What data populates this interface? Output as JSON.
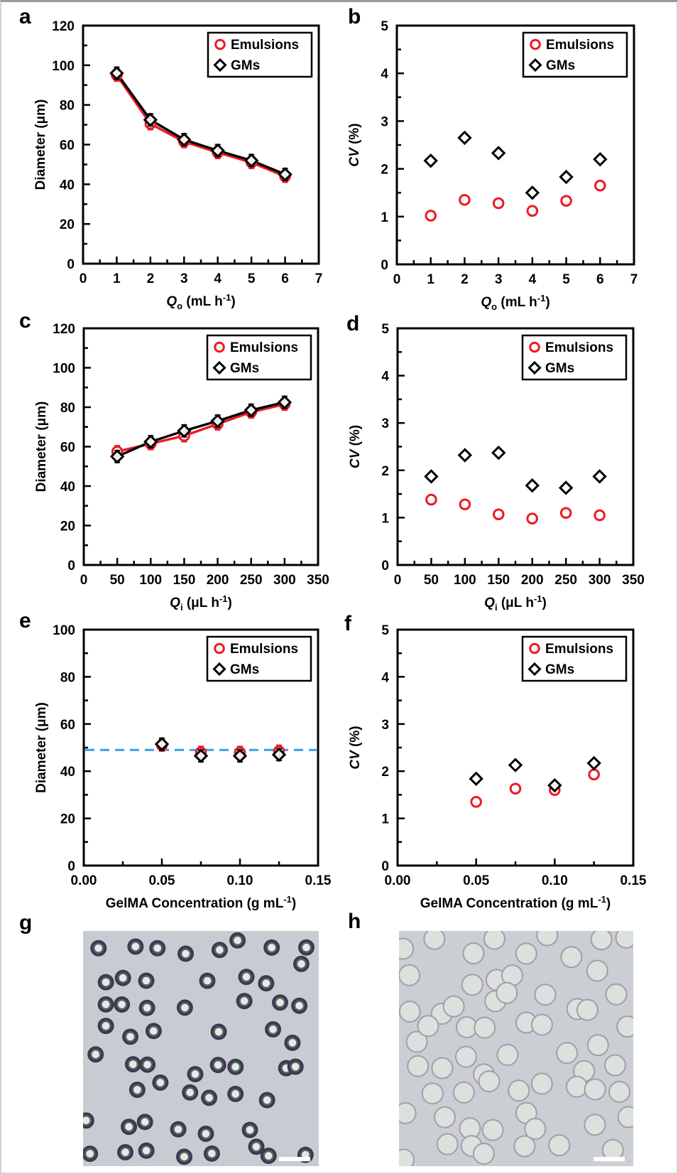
{
  "figure": {
    "background": "#ffffff",
    "frame_color": "#d2d2d2"
  },
  "colors": {
    "emulsions": "#ec1b24",
    "gms": "#000000",
    "axis": "#000000",
    "reference_dash": "#39a5ef",
    "micrograph_g_bg": "#c7ccd3",
    "micrograph_h_bg": "#cbced2",
    "scalebar": "#ffffff"
  },
  "legend": {
    "emulsions_label": "Emulsions",
    "gms_label": "GMs"
  },
  "chart_data": [
    {
      "id": "a",
      "panel_letter": "a",
      "type": "line",
      "x": [
        1,
        2,
        3,
        4,
        5,
        6
      ],
      "series": [
        {
          "name": "Emulsions",
          "marker": "circle",
          "color": "#ec1b24",
          "line": true,
          "values": [
            95,
            70.5,
            61.5,
            56,
            51,
            44
          ]
        },
        {
          "name": "GMs",
          "marker": "diamond",
          "color": "#000000",
          "line": true,
          "values": [
            96,
            72.5,
            62.5,
            57,
            52,
            45
          ]
        }
      ],
      "error_y": 3,
      "xlim": [
        0,
        7
      ],
      "ylim": [
        0,
        120
      ],
      "xtick_step": 1,
      "ytick_step": 20,
      "xminor_step": 0.5,
      "yminor_step": 10,
      "xtick_decimals": 0,
      "ytick_decimals": 0,
      "xticks": [
        "0",
        "1",
        "2",
        "3",
        "4",
        "5",
        "6",
        "7"
      ],
      "yticks": [
        "0",
        "20",
        "40",
        "60",
        "80",
        "100",
        "120"
      ],
      "xlabel": [
        {
          "t": "Q",
          "i": true
        },
        {
          "t": "o",
          "sub": true
        },
        {
          "t": " (mL h"
        },
        {
          "t": "-1",
          "sup": true
        },
        {
          "t": ")"
        }
      ],
      "ylabel": [
        {
          "t": "Diameter (μm)"
        }
      ],
      "legend": true,
      "ref_line_y": null
    },
    {
      "id": "b",
      "panel_letter": "b",
      "type": "scatter",
      "x": [
        1,
        2,
        3,
        4,
        5,
        6
      ],
      "series": [
        {
          "name": "Emulsions",
          "marker": "circle",
          "color": "#ec1b24",
          "line": false,
          "values": [
            1.02,
            1.35,
            1.28,
            1.12,
            1.33,
            1.65
          ]
        },
        {
          "name": "GMs",
          "marker": "diamond",
          "color": "#000000",
          "line": false,
          "values": [
            2.17,
            2.65,
            2.33,
            1.5,
            1.83,
            2.2
          ]
        }
      ],
      "error_y": 0,
      "xlim": [
        0,
        7
      ],
      "ylim": [
        0,
        5
      ],
      "xtick_step": 1,
      "ytick_step": 1,
      "xminor_step": 0.5,
      "yminor_step": 0.5,
      "xtick_decimals": 0,
      "ytick_decimals": 0,
      "xticks": [
        "0",
        "1",
        "2",
        "3",
        "4",
        "5",
        "6",
        "7"
      ],
      "yticks": [
        "0",
        "1",
        "2",
        "3",
        "4",
        "5"
      ],
      "xlabel": [
        {
          "t": "Q",
          "i": true
        },
        {
          "t": "o",
          "sub": true
        },
        {
          "t": " (mL h"
        },
        {
          "t": "-1",
          "sup": true
        },
        {
          "t": ")"
        }
      ],
      "ylabel": [
        {
          "t": "CV",
          "i": true
        },
        {
          "t": " (%)"
        }
      ],
      "legend": true,
      "ref_line_y": null
    },
    {
      "id": "c",
      "panel_letter": "c",
      "type": "line",
      "x": [
        50,
        100,
        150,
        200,
        250,
        300
      ],
      "series": [
        {
          "name": "Emulsions",
          "marker": "circle",
          "color": "#ec1b24",
          "line": true,
          "values": [
            57.5,
            61.5,
            65.5,
            71.5,
            77.5,
            81.5
          ]
        },
        {
          "name": "GMs",
          "marker": "diamond",
          "color": "#000000",
          "line": true,
          "values": [
            55,
            62.5,
            68,
            73,
            78.5,
            82.5
          ]
        }
      ],
      "error_y": 3,
      "xlim": [
        0,
        350
      ],
      "ylim": [
        0,
        120
      ],
      "xtick_step": 50,
      "ytick_step": 20,
      "xminor_step": 25,
      "yminor_step": 10,
      "xtick_decimals": 0,
      "ytick_decimals": 0,
      "xticks": [
        "0",
        "50",
        "100",
        "150",
        "200",
        "250",
        "300",
        "350"
      ],
      "yticks": [
        "0",
        "20",
        "40",
        "60",
        "80",
        "100",
        "120"
      ],
      "xlabel": [
        {
          "t": "Q",
          "i": true
        },
        {
          "t": "i",
          "sub": true
        },
        {
          "t": " (μL h"
        },
        {
          "t": "-1",
          "sup": true
        },
        {
          "t": ")"
        }
      ],
      "ylabel": [
        {
          "t": "Diameter (μm)"
        }
      ],
      "legend": true,
      "ref_line_y": null
    },
    {
      "id": "d",
      "panel_letter": "d",
      "type": "scatter",
      "x": [
        50,
        100,
        150,
        200,
        250,
        300
      ],
      "series": [
        {
          "name": "Emulsions",
          "marker": "circle",
          "color": "#ec1b24",
          "line": false,
          "values": [
            1.38,
            1.28,
            1.07,
            0.98,
            1.1,
            1.05
          ]
        },
        {
          "name": "GMs",
          "marker": "diamond",
          "color": "#000000",
          "line": false,
          "values": [
            1.87,
            2.32,
            2.37,
            1.68,
            1.63,
            1.87
          ]
        }
      ],
      "error_y": 0,
      "xlim": [
        0,
        350
      ],
      "ylim": [
        0,
        5
      ],
      "xtick_step": 50,
      "ytick_step": 1,
      "xminor_step": 25,
      "yminor_step": 0.5,
      "xtick_decimals": 0,
      "ytick_decimals": 0,
      "xticks": [
        "0",
        "50",
        "100",
        "150",
        "200",
        "250",
        "300",
        "350"
      ],
      "yticks": [
        "0",
        "1",
        "2",
        "3",
        "4",
        "5"
      ],
      "xlabel": [
        {
          "t": "Q",
          "i": true
        },
        {
          "t": "i",
          "sub": true
        },
        {
          "t": " (μL h"
        },
        {
          "t": "-1",
          "sup": true
        },
        {
          "t": ")"
        }
      ],
      "ylabel": [
        {
          "t": "CV",
          "i": true
        },
        {
          "t": " (%)"
        }
      ],
      "legend": true,
      "ref_line_y": null
    },
    {
      "id": "e",
      "panel_letter": "e",
      "type": "scatter",
      "x": [
        0.05,
        0.075,
        0.1,
        0.125
      ],
      "series": [
        {
          "name": "Emulsions",
          "marker": "circle",
          "color": "#ec1b24",
          "line": false,
          "values": [
            51,
            48,
            48,
            48.5
          ]
        },
        {
          "name": "GMs",
          "marker": "diamond",
          "color": "#000000",
          "line": false,
          "values": [
            51.5,
            46.5,
            46.5,
            47
          ]
        }
      ],
      "error_y": 2.5,
      "xlim": [
        0,
        0.15
      ],
      "ylim": [
        0,
        100
      ],
      "xtick_step": 0.05,
      "ytick_step": 20,
      "xminor_step": 0.025,
      "yminor_step": 10,
      "xtick_decimals": 2,
      "ytick_decimals": 0,
      "xticks": [
        "0.00",
        "0.05",
        "0.10",
        "0.15"
      ],
      "yticks": [
        "0",
        "20",
        "40",
        "60",
        "80",
        "100"
      ],
      "xlabel": [
        {
          "t": "GelMA Concentration (g mL"
        },
        {
          "t": "-1",
          "sup": true
        },
        {
          "t": ")"
        }
      ],
      "ylabel": [
        {
          "t": "Diameter (μm)"
        }
      ],
      "legend": true,
      "ref_line_y": 49
    },
    {
      "id": "f",
      "panel_letter": "f",
      "type": "scatter",
      "x": [
        0.05,
        0.075,
        0.1,
        0.125
      ],
      "series": [
        {
          "name": "Emulsions",
          "marker": "circle",
          "color": "#ec1b24",
          "line": false,
          "values": [
            1.35,
            1.63,
            1.6,
            1.93
          ]
        },
        {
          "name": "GMs",
          "marker": "diamond",
          "color": "#000000",
          "line": false,
          "values": [
            1.84,
            2.13,
            1.7,
            2.17
          ]
        }
      ],
      "error_y": 0,
      "xlim": [
        0,
        0.15
      ],
      "ylim": [
        0,
        5
      ],
      "xtick_step": 0.05,
      "ytick_step": 1,
      "xminor_step": 0.025,
      "yminor_step": 0.5,
      "xtick_decimals": 2,
      "ytick_decimals": 0,
      "xticks": [
        "0.00",
        "0.05",
        "0.10",
        "0.15"
      ],
      "yticks": [
        "0",
        "1",
        "2",
        "3",
        "4",
        "5"
      ],
      "xlabel": [
        {
          "t": "GelMA Concentration (g mL"
        },
        {
          "t": "-1",
          "sup": true
        },
        {
          "t": ")"
        }
      ],
      "ylabel": [
        {
          "t": "CV",
          "i": true
        },
        {
          "t": " (%)"
        }
      ],
      "legend": true,
      "ref_line_y": null
    }
  ],
  "micrographs": [
    {
      "id": "g",
      "panel_letter": "g",
      "type": "rings",
      "bg": "#c7ccd3",
      "count": 56,
      "cols": 8,
      "rows": 8,
      "radius": 11.5,
      "ring_color": "#3f3850",
      "teal_color": "#44705f",
      "center_color": "#ece5ea",
      "seed": 11,
      "jitter": 0.8,
      "scalebar": {
        "w": 44,
        "h": 6,
        "color": "#ffffff"
      }
    },
    {
      "id": "h",
      "panel_letter": "h",
      "type": "spheres",
      "bg": "#cbced2",
      "count": 62,
      "cols": 9,
      "rows": 8,
      "radius": 14.5,
      "fill": "#dbe1dd",
      "rim": "#a59cac",
      "seed": 23,
      "jitter": 0.8,
      "scalebar": {
        "w": 44,
        "h": 6,
        "color": "#ffffff"
      }
    }
  ]
}
